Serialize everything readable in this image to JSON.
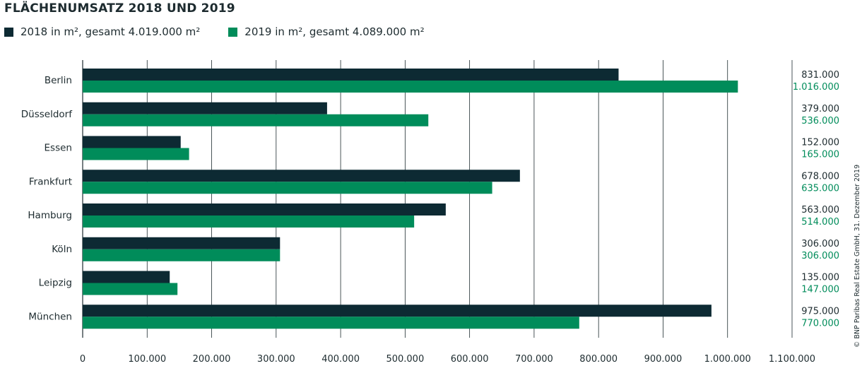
{
  "chart_data": {
    "type": "bar",
    "orientation": "horizontal",
    "title": "FLÄCHENUMSATZ 2018 UND 2019",
    "categories": [
      "Berlin",
      "Düsseldorf",
      "Essen",
      "Frankfurt",
      "Hamburg",
      "Köln",
      "Leipzig",
      "München"
    ],
    "series": [
      {
        "name": "2018 in m², gesamt 4.019.000 m²",
        "color": "#0d2a33",
        "values": [
          831000,
          379000,
          152000,
          678000,
          563000,
          306000,
          135000,
          975000
        ],
        "labels": [
          "831.000",
          "379.000",
          "152.000",
          "678.000",
          "563.000",
          "306.000",
          "135.000",
          "975.000"
        ]
      },
      {
        "name": "2019 in m², gesamt 4.089.000 m²",
        "color": "#008c5a",
        "values": [
          1016000,
          536000,
          165000,
          635000,
          514000,
          306000,
          147000,
          770000
        ],
        "labels": [
          "1.016.000",
          "536.000",
          "165.000",
          "635.000",
          "514.000",
          "306.000",
          "147.000",
          "770.000"
        ]
      }
    ],
    "xlim": [
      0,
      1100000
    ],
    "xticks": [
      0,
      100000,
      200000,
      300000,
      400000,
      500000,
      600000,
      700000,
      800000,
      900000,
      1000000,
      1100000
    ],
    "xtick_labels": [
      "0",
      "100.000",
      "200.000",
      "300.000",
      "400.000",
      "500.000",
      "600.000",
      "700.000",
      "800.000",
      "900.000",
      "1.000.000",
      "1.100.000"
    ],
    "grid": true,
    "legend_position": "top-left"
  },
  "credit": "© BNP Paribas Real Estate GmbH, 31. Dezember 2019"
}
